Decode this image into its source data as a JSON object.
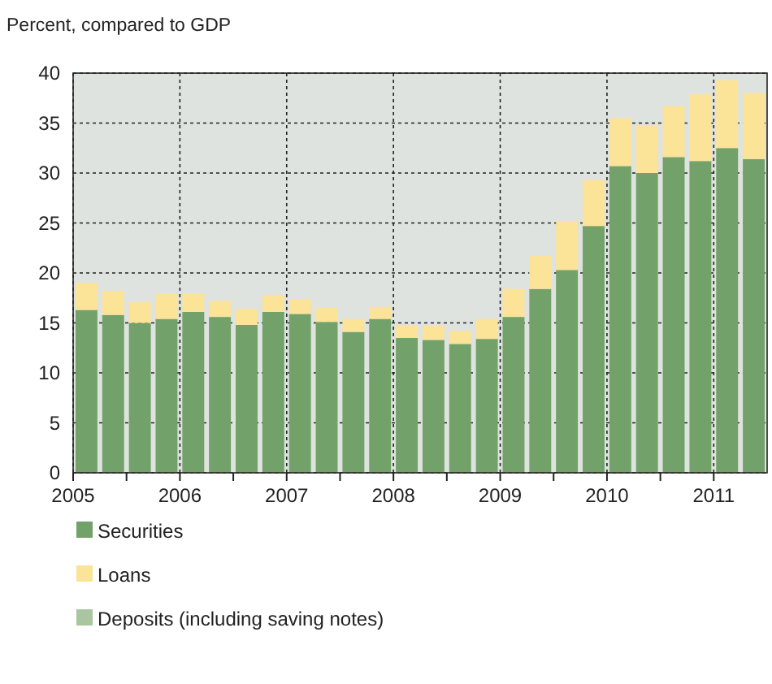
{
  "chart_data": {
    "type": "bar",
    "stacked": true,
    "ylabel": "Percent, compared to GDP",
    "x": [
      2005.125,
      2005.375,
      2005.625,
      2005.875,
      2006.125,
      2006.375,
      2006.625,
      2006.875,
      2007.125,
      2007.375,
      2007.625,
      2007.875,
      2008.125,
      2008.375,
      2008.625,
      2008.875,
      2009.125,
      2009.375,
      2009.625,
      2009.875,
      2010.125,
      2010.375,
      2010.625,
      2010.875,
      2011.125,
      2011.375
    ],
    "xlim": [
      2005,
      2011.5
    ],
    "xticks": [
      2005,
      {
        "value": 2005.5,
        "label": null
      },
      2006,
      {
        "value": 2006.5,
        "label": null
      },
      2007,
      {
        "value": 2007.5,
        "label": null
      },
      2008,
      {
        "value": 2008.5,
        "label": null
      },
      2009,
      {
        "value": 2009.5,
        "label": null
      },
      2010,
      {
        "value": 2010.5,
        "label": null
      },
      2011
    ],
    "ylim": [
      0,
      40
    ],
    "yticks": [
      0,
      5,
      10,
      15,
      20,
      25,
      30,
      35,
      40
    ],
    "grid": true,
    "legend": "bottom",
    "series": [
      {
        "name": "Securities",
        "color": "#72a26a",
        "values": [
          16.3,
          15.8,
          15.0,
          15.4,
          16.1,
          15.6,
          14.8,
          16.1,
          15.9,
          15.1,
          14.1,
          15.4,
          13.5,
          13.3,
          12.9,
          13.4,
          15.6,
          18.4,
          20.3,
          24.7,
          30.7,
          30.0,
          31.6,
          31.2,
          32.5,
          31.4
        ]
      },
      {
        "name": "Loans",
        "color": "#fbe398",
        "values": [
          2.7,
          2.4,
          2.1,
          2.5,
          1.8,
          1.6,
          1.6,
          1.7,
          1.5,
          1.4,
          1.3,
          1.2,
          1.3,
          1.5,
          1.3,
          2.0,
          2.8,
          3.3,
          4.9,
          4.6,
          4.8,
          4.8,
          5.1,
          6.7,
          6.8,
          6.6
        ]
      },
      {
        "name": "Deposits (including saving notes)",
        "color": "#a9c6a0",
        "values": [
          null,
          null,
          null,
          null,
          null,
          null,
          null,
          null,
          null,
          null,
          null,
          null,
          null,
          null,
          null,
          null,
          null,
          null,
          null,
          null,
          null,
          null,
          null,
          null,
          null,
          null
        ]
      }
    ]
  }
}
